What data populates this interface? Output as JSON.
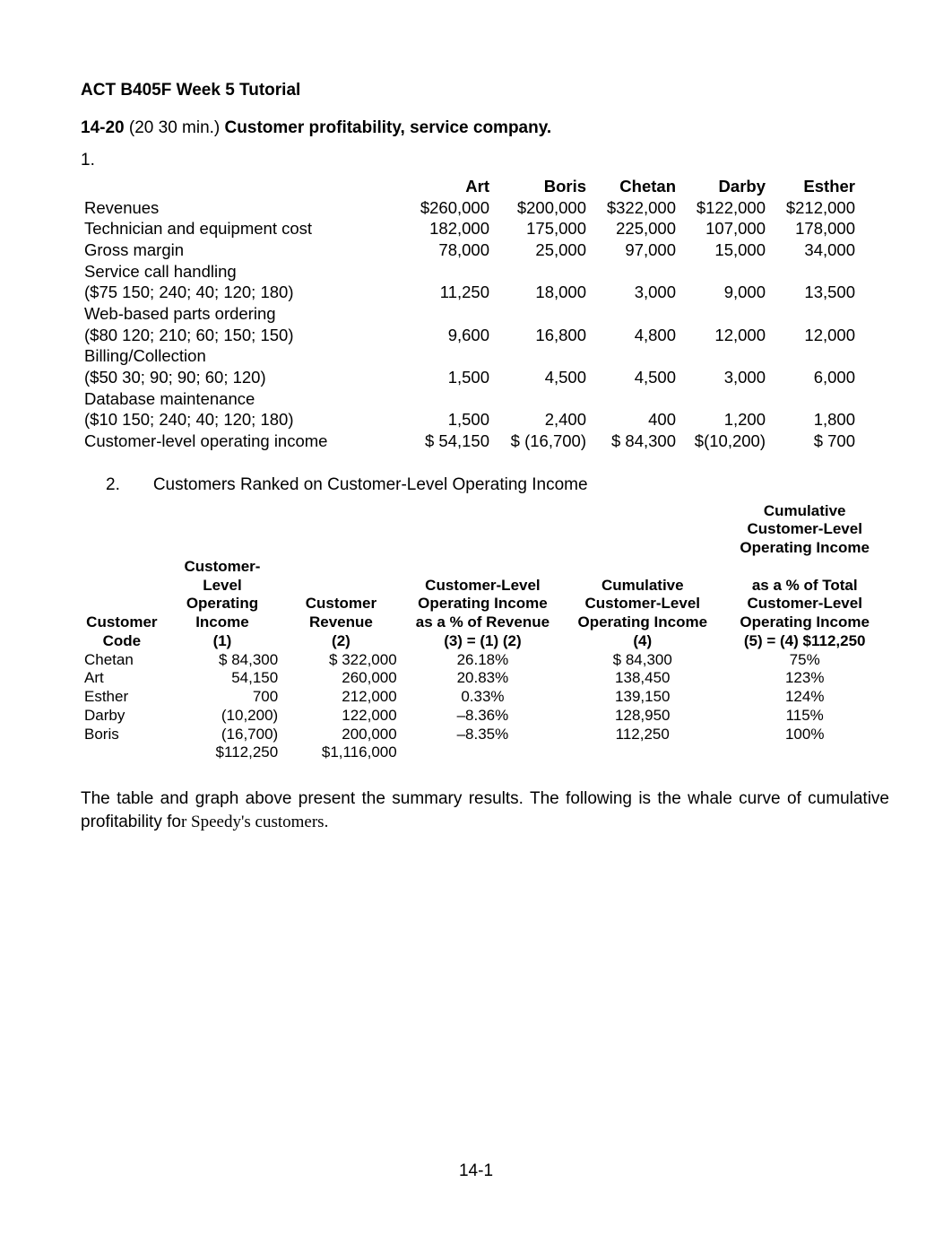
{
  "header": {
    "title": "ACT B405F Week 5 Tutorial",
    "q_line_lead": "14-20",
    "q_line_time": "  (20  30 min.) ",
    "q_line_rest": "Customer profitability, service company.",
    "q1": "1."
  },
  "table1": {
    "head": {
      "art": "Art",
      "boris": "Boris",
      "chetan": "Chetan",
      "darby": "Darby",
      "esther": "Esther"
    },
    "rows": [
      {
        "label": "Revenues",
        "art": "$260,000",
        "boris": "$200,000",
        "chetan": "$322,000",
        "darby": "$122,000",
        "esther": "$212,000"
      },
      {
        "label": "Technician and equipment cost",
        "art": "182,000",
        "boris": "175,000",
        "chetan": "225,000",
        "darby": "107,000",
        "esther": "178,000"
      },
      {
        "label": "Gross margin",
        "art": "78,000",
        "boris": "25,000",
        "chetan": "97,000",
        "darby": "15,000",
        "esther": "34,000"
      },
      {
        "label": "Service call handling",
        "art": "",
        "boris": "",
        "chetan": "",
        "darby": "",
        "esther": ""
      },
      {
        "label": "($75   150; 240; 40; 120; 180)",
        "art": "11,250",
        "boris": "18,000",
        "chetan": "3,000",
        "darby": "9,000",
        "esther": "13,500"
      },
      {
        "label": "Web-based parts ordering",
        "art": "",
        "boris": "",
        "chetan": "",
        "darby": "",
        "esther": ""
      },
      {
        "label": "($80   120; 210; 60; 150; 150)",
        "art": "9,600",
        "boris": "16,800",
        "chetan": "4,800",
        "darby": "12,000",
        "esther": "12,000"
      },
      {
        "label": "Billing/Collection",
        "art": "",
        "boris": "",
        "chetan": "",
        "darby": "",
        "esther": ""
      },
      {
        "label": "($50   30; 90; 90; 60; 120)",
        "art": "1,500",
        "boris": "4,500",
        "chetan": "4,500",
        "darby": "3,000",
        "esther": "6,000"
      },
      {
        "label": "Database maintenance",
        "art": "",
        "boris": "",
        "chetan": "",
        "darby": "",
        "esther": ""
      },
      {
        "label": "($10   150; 240; 40; 120; 180)",
        "art": "1,500",
        "boris": "2,400",
        "chetan": "400",
        "darby": "1,200",
        "esther": "1,800"
      },
      {
        "label": "Customer-level operating income",
        "art": "$ 54,150",
        "boris": "$ (16,700)",
        "chetan": "$ 84,300",
        "darby": "$(10,200)",
        "esther": "$       700"
      }
    ]
  },
  "section2": {
    "lead_num": "2.",
    "lead_text": "Customers Ranked on Customer-Level Operating Income"
  },
  "table2": {
    "h": {
      "c0a": "Customer",
      "c0b": "Code",
      "c1a": "Customer-Level",
      "c1b": "Operating",
      "c1c": "Income",
      "c1d": "(1)",
      "c2a": "Customer",
      "c2b": "Revenue",
      "c2c": "(2)",
      "c3a": "Customer-Level",
      "c3b": "Operating Income",
      "c3c": "as a % of Revenue",
      "c3d": "(3) = (1)   (2)",
      "c4top": "Cumulative",
      "c4a": "Customer-Level",
      "c4b": "Operating Income",
      "c4c": "(4)",
      "c5top1": "Cumulative",
      "c5top2": "Customer-Level",
      "c5top3": "Operating Income",
      "c5a": "as a % of Total",
      "c5b": "Customer-Level",
      "c5c": "Operating Income",
      "c5d": "(5) = (4)  $112,250"
    },
    "rows": [
      {
        "code": "Chetan",
        "c1": "$ 84,300",
        "c2": "$  322,000",
        "c3": "26.18%",
        "c4": "$ 84,300",
        "c5": "75%"
      },
      {
        "code": "Art",
        "c1": "54,150",
        "c2": "260,000",
        "c3": "20.83%",
        "c4": "138,450",
        "c5": "123%"
      },
      {
        "code": "Esther",
        "c1": "700",
        "c2": "212,000",
        "c3": "0.33%",
        "c4": "139,150",
        "c5": "124%"
      },
      {
        "code": "Darby",
        "c1": "(10,200)",
        "c2": "122,000",
        "c3": "–8.36%",
        "c4": "128,950",
        "c5": "115%"
      },
      {
        "code": "Boris",
        "c1": "(16,700)",
        "c2": "200,000",
        "c3": "–8.35%",
        "c4": "112,250",
        "c5": "100%"
      }
    ],
    "totals": {
      "c1": "$112,250",
      "c2": "$1,116,000"
    }
  },
  "para": {
    "t1": "The table and graph above present the summary results. The following is the whale curve of cumulative profitability fo",
    "t2": "r Speedy's customers."
  },
  "footer": "14-1"
}
